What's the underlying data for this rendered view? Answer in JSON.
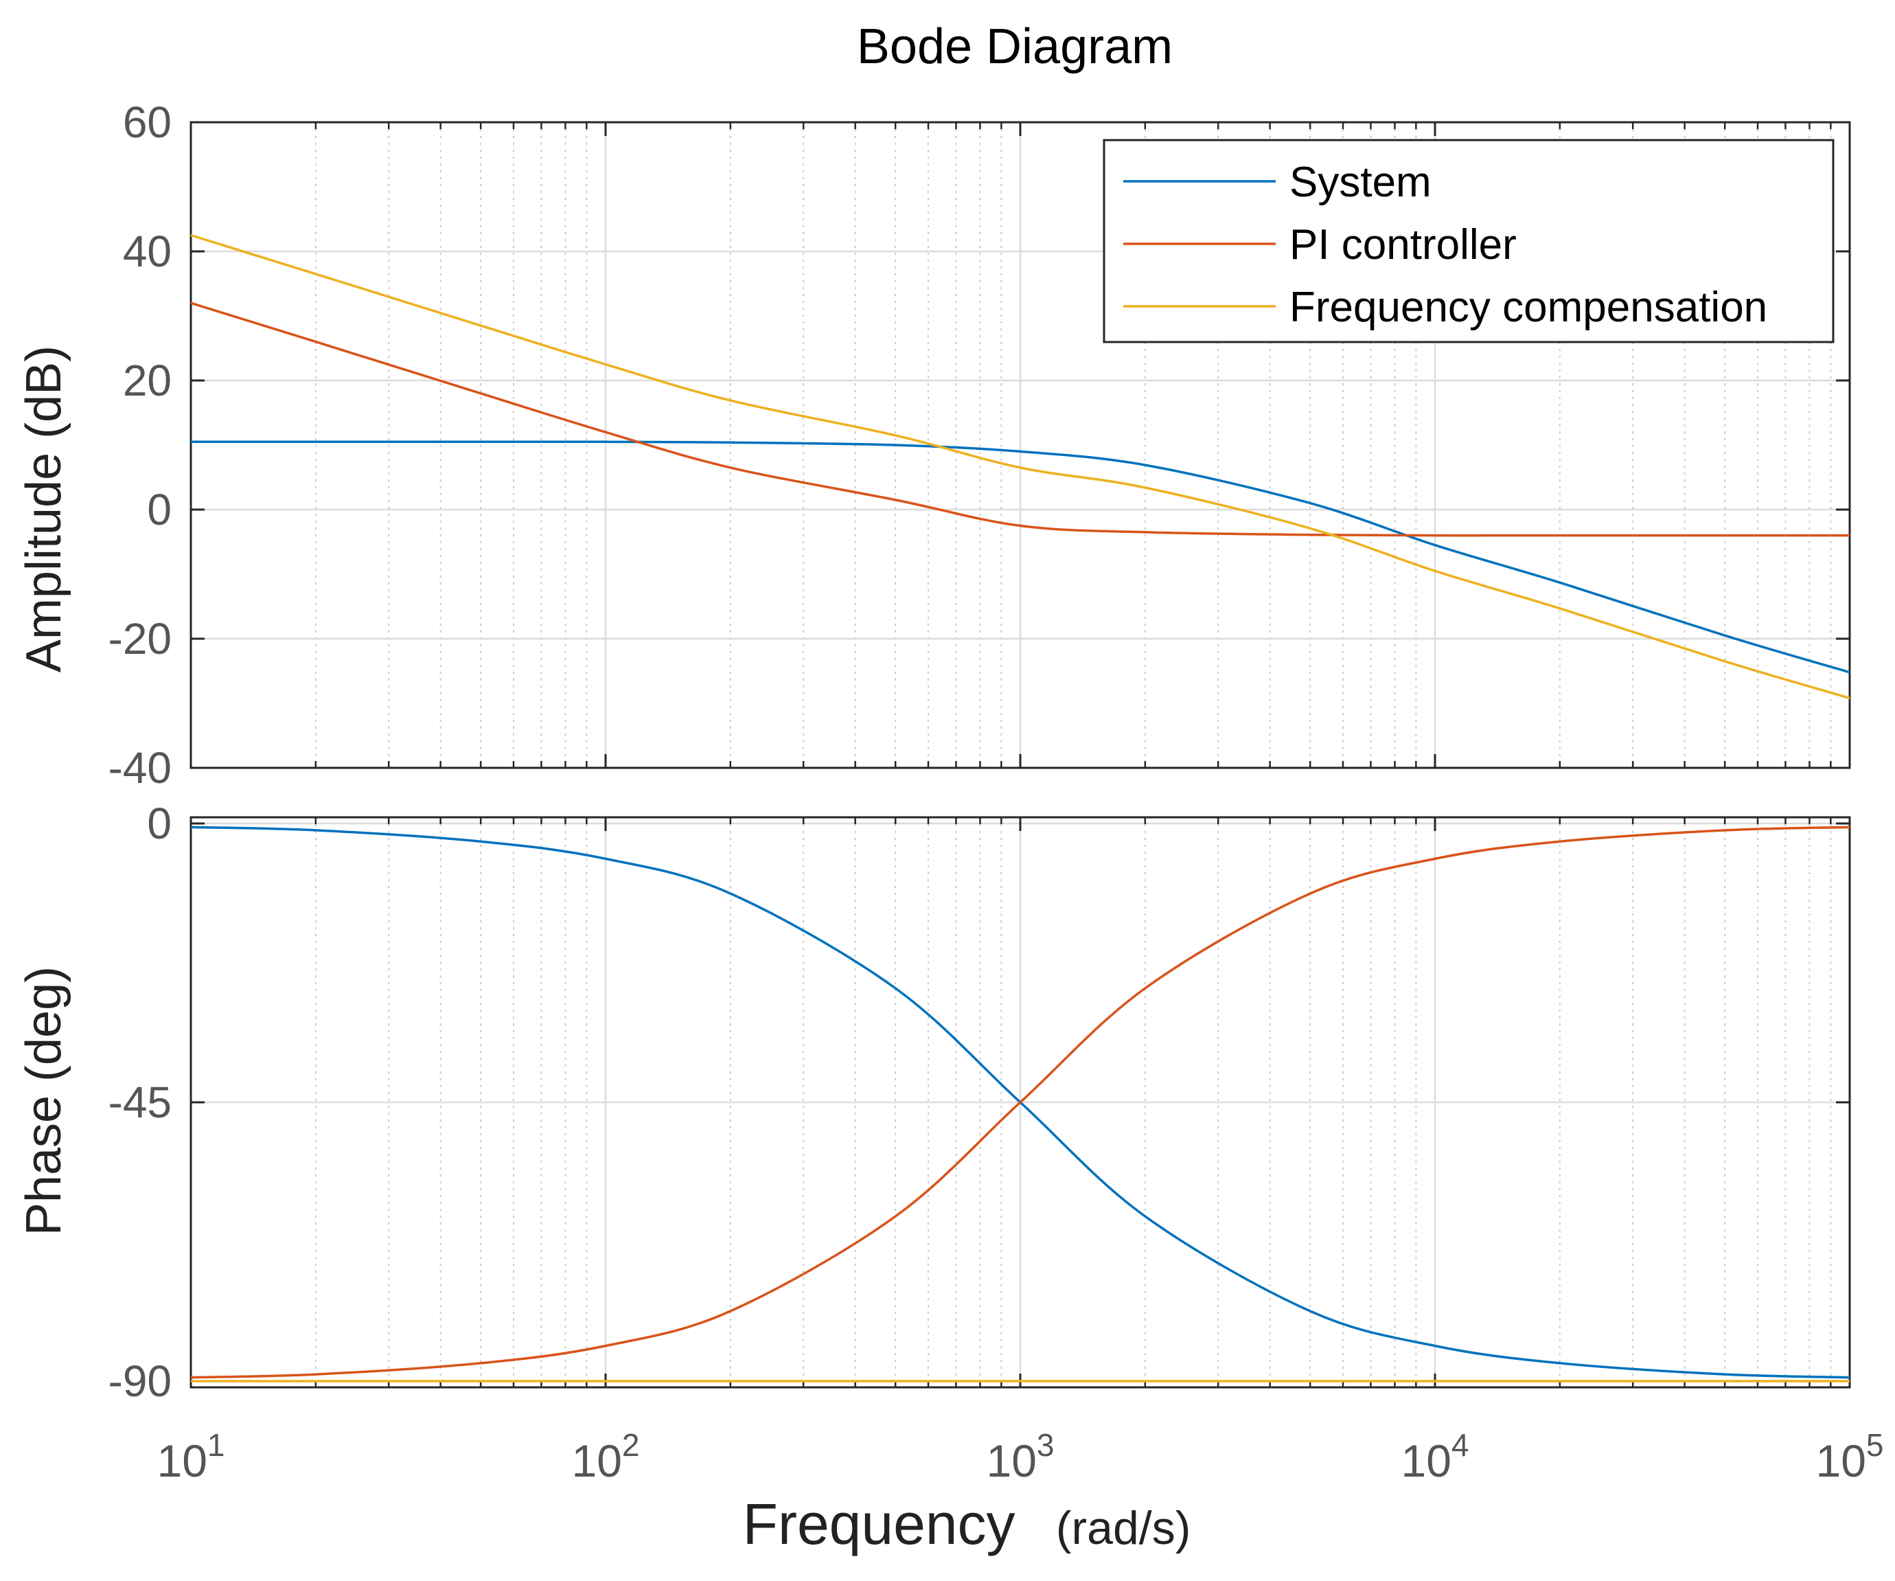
{
  "chart_data": {
    "type": "line",
    "title": "Bode Diagram",
    "xlabel": "Frequency",
    "xlabel_units": "(rad/s)",
    "xscale": "log",
    "xlim": [
      10,
      100000
    ],
    "x_ticks": [
      {
        "value": 10,
        "base": "10",
        "exp": "1"
      },
      {
        "value": 100,
        "base": "10",
        "exp": "2"
      },
      {
        "value": 1000,
        "base": "10",
        "exp": "3"
      },
      {
        "value": 10000,
        "base": "10",
        "exp": "4"
      },
      {
        "value": 100000,
        "base": "10",
        "exp": "5"
      }
    ],
    "grid": true,
    "legend": {
      "position": "top-right",
      "entries": [
        "System",
        "PI controller",
        "Frequency compensation"
      ]
    },
    "series_colors": [
      "#0072BD",
      "#D95319",
      "#EDB120"
    ],
    "magnitude": {
      "ylabel": "Amplitude (dB)",
      "ylim": [
        -40,
        60
      ],
      "y_ticks": [
        "60",
        "40",
        "20",
        "0",
        "-20",
        "-40"
      ],
      "y_tick_values": [
        60,
        40,
        20,
        0,
        -20,
        -40
      ],
      "x": [
        10,
        20,
        50,
        100,
        200,
        500,
        1000,
        2000,
        5000,
        10000,
        20000,
        50000,
        100000
      ],
      "series": [
        {
          "name": "System",
          "values": [
            10.5,
            10.5,
            10.5,
            10.5,
            10.4,
            10.0,
            9.0,
            6.9,
            1.0,
            -5.5,
            -11.3,
            -19.5,
            -25.2
          ]
        },
        {
          "name": "PI controller",
          "values": [
            32.0,
            26.0,
            18.0,
            12.0,
            6.5,
            1.5,
            -2.5,
            -3.5,
            -3.9,
            -4.0,
            -4.0,
            -4.0,
            -4.0
          ]
        },
        {
          "name": "Frequency compensation",
          "values": [
            42.5,
            36.5,
            28.5,
            22.5,
            16.9,
            11.5,
            6.5,
            3.4,
            -2.9,
            -9.5,
            -15.3,
            -23.5,
            -29.2
          ]
        }
      ]
    },
    "phase": {
      "ylabel": "Phase (deg)",
      "ylim": [
        -91,
        1
      ],
      "y_ticks": [
        "0",
        "-45",
        "-90"
      ],
      "y_tick_values": [
        0,
        -45,
        -90
      ],
      "x": [
        10,
        20,
        50,
        100,
        200,
        500,
        1000,
        2000,
        5000,
        10000,
        20000,
        50000,
        100000
      ],
      "series": [
        {
          "name": "System",
          "values": [
            -0.6,
            -1.1,
            -2.9,
            -5.7,
            -11.3,
            -26.6,
            -45.0,
            -63.4,
            -78.7,
            -84.3,
            -87.1,
            -88.9,
            -89.4
          ]
        },
        {
          "name": "PI controller",
          "values": [
            -89.4,
            -88.9,
            -87.1,
            -84.3,
            -78.7,
            -63.4,
            -45.0,
            -26.6,
            -11.3,
            -5.7,
            -2.9,
            -1.1,
            -0.6
          ]
        },
        {
          "name": "Frequency compensation",
          "values": [
            -90.0,
            -90.0,
            -90.0,
            -90.0,
            -90.0,
            -90.0,
            -90.0,
            -90.0,
            -90.0,
            -90.0,
            -90.0,
            -90.0,
            -90.0
          ]
        }
      ]
    }
  }
}
